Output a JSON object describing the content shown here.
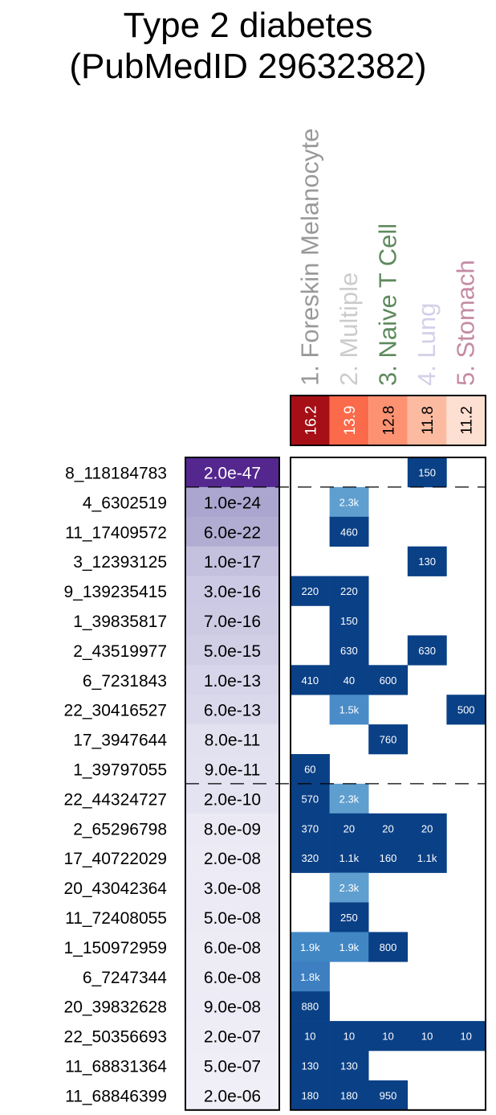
{
  "chart_data": {
    "type": "heatmap",
    "title": "Type 2 diabetes",
    "subtitle": "(PubMedID 29632382)",
    "columns": [
      {
        "label": "1. Foreskin Melanocyte",
        "label_color": "#999999",
        "score": "16.2",
        "score_color": "#a50f15",
        "score_text_color": "#ffffff"
      },
      {
        "label": "2. Multiple",
        "label_color": "#cccccc",
        "score": "13.9",
        "score_color": "#fb6a4a",
        "score_text_color": "#ffffff"
      },
      {
        "label": "3. Naive T Cell",
        "label_color": "#5e8a5e",
        "score": "12.8",
        "score_color": "#fc9272",
        "score_text_color": "#000000"
      },
      {
        "label": "4. Lung",
        "label_color": "#d4d0e8",
        "score": "11.8",
        "score_color": "#fcbba1",
        "score_text_color": "#000000"
      },
      {
        "label": "5. Stomach",
        "label_color": "#c48ba4",
        "score": "11.2",
        "score_color": "#fee0d2",
        "score_text_color": "#000000"
      }
    ],
    "rows": [
      {
        "snp": "8_118184783",
        "pvalue": "2.0e-47",
        "p_color": "#54278f",
        "p_text_color": "#ffffff",
        "cells": [
          null,
          null,
          null,
          "150",
          null
        ]
      },
      {
        "snp": "4_6302519",
        "pvalue": "1.0e-24",
        "p_color": "#aba6cf",
        "p_text_color": "#000000",
        "cells": [
          null,
          "2.3k",
          null,
          null,
          null
        ]
      },
      {
        "snp": "11_17409572",
        "pvalue": "6.0e-22",
        "p_color": "#b0acd2",
        "p_text_color": "#000000",
        "cells": [
          null,
          "460",
          null,
          null,
          null
        ]
      },
      {
        "snp": "3_12393125",
        "pvalue": "1.0e-17",
        "p_color": "#c4c1df",
        "p_text_color": "#000000",
        "cells": [
          null,
          null,
          null,
          "130",
          null
        ]
      },
      {
        "snp": "9_139235415",
        "pvalue": "3.0e-16",
        "p_color": "#cbc9e3",
        "p_text_color": "#000000",
        "cells": [
          "220",
          "220",
          null,
          null,
          null
        ]
      },
      {
        "snp": "1_39835817",
        "pvalue": "7.0e-16",
        "p_color": "#cdcbe4",
        "p_text_color": "#000000",
        "cells": [
          null,
          "150",
          null,
          null,
          null
        ]
      },
      {
        "snp": "2_43519977",
        "pvalue": "5.0e-15",
        "p_color": "#d1cfe6",
        "p_text_color": "#000000",
        "cells": [
          null,
          "630",
          null,
          "630",
          null
        ]
      },
      {
        "snp": "6_7231843",
        "pvalue": "1.0e-13",
        "p_color": "#d7d5ea",
        "p_text_color": "#000000",
        "cells": [
          "410",
          "40",
          "600",
          null,
          null
        ]
      },
      {
        "snp": "22_30416527",
        "pvalue": "6.0e-13",
        "p_color": "#dad9ec",
        "p_text_color": "#000000",
        "cells": [
          null,
          "1.5k",
          null,
          null,
          "500"
        ]
      },
      {
        "snp": "17_3947644",
        "pvalue": "8.0e-11",
        "p_color": "#e2e1f0",
        "p_text_color": "#000000",
        "cells": [
          null,
          null,
          "760",
          null,
          null
        ]
      },
      {
        "snp": "1_39797055",
        "pvalue": "9.0e-11",
        "p_color": "#e3e2f1",
        "p_text_color": "#000000",
        "cells": [
          "60",
          null,
          null,
          null,
          null
        ]
      },
      {
        "snp": "22_44324727",
        "pvalue": "2.0e-10",
        "p_color": "#e4e3f1",
        "p_text_color": "#000000",
        "cells": [
          "570",
          "2.3k",
          null,
          null,
          null
        ]
      },
      {
        "snp": "2_65296798",
        "pvalue": "8.0e-09",
        "p_color": "#eae9f4",
        "p_text_color": "#000000",
        "cells": [
          "370",
          "20",
          "20",
          "20",
          null
        ]
      },
      {
        "snp": "17_40722029",
        "pvalue": "2.0e-08",
        "p_color": "#ebeaf5",
        "p_text_color": "#000000",
        "cells": [
          "320",
          "1.1k",
          "160",
          "1.1k",
          null
        ]
      },
      {
        "snp": "20_43042364",
        "pvalue": "3.0e-08",
        "p_color": "#ecebf5",
        "p_text_color": "#000000",
        "cells": [
          null,
          "2.3k",
          null,
          null,
          null
        ]
      },
      {
        "snp": "11_72408055",
        "pvalue": "5.0e-08",
        "p_color": "#ecebf5",
        "p_text_color": "#000000",
        "cells": [
          null,
          "250",
          null,
          null,
          null
        ]
      },
      {
        "snp": "1_150972959",
        "pvalue": "6.0e-08",
        "p_color": "#edecf5",
        "p_text_color": "#000000",
        "cells": [
          "1.9k",
          "1.9k",
          "800",
          null,
          null
        ]
      },
      {
        "snp": "6_7247344",
        "pvalue": "6.0e-08",
        "p_color": "#edecf5",
        "p_text_color": "#000000",
        "cells": [
          "1.8k",
          null,
          null,
          null,
          null
        ]
      },
      {
        "snp": "20_39832628",
        "pvalue": "9.0e-08",
        "p_color": "#edecf6",
        "p_text_color": "#000000",
        "cells": [
          "880",
          null,
          null,
          null,
          null
        ]
      },
      {
        "snp": "22_50356693",
        "pvalue": "2.0e-07",
        "p_color": "#eeedf6",
        "p_text_color": "#000000",
        "cells": [
          "10",
          "10",
          "10",
          "10",
          "10"
        ]
      },
      {
        "snp": "11_68831364",
        "pvalue": "5.0e-07",
        "p_color": "#efeef7",
        "p_text_color": "#000000",
        "cells": [
          "130",
          "130",
          null,
          null,
          null
        ]
      },
      {
        "snp": "11_68846399",
        "pvalue": "2.0e-06",
        "p_color": "#f0eff7",
        "p_text_color": "#000000",
        "cells": [
          "180",
          "180",
          "950",
          null,
          null
        ]
      }
    ],
    "cell_colors": {
      "1.5k": "#4a8cc7",
      "1.8k": "#3d7fc0",
      "1.9k": "#4187c4",
      "2.3k": "#5f9fd0",
      "default": "#0a4086"
    },
    "threshold_lines_after_row": [
      1,
      11
    ]
  }
}
